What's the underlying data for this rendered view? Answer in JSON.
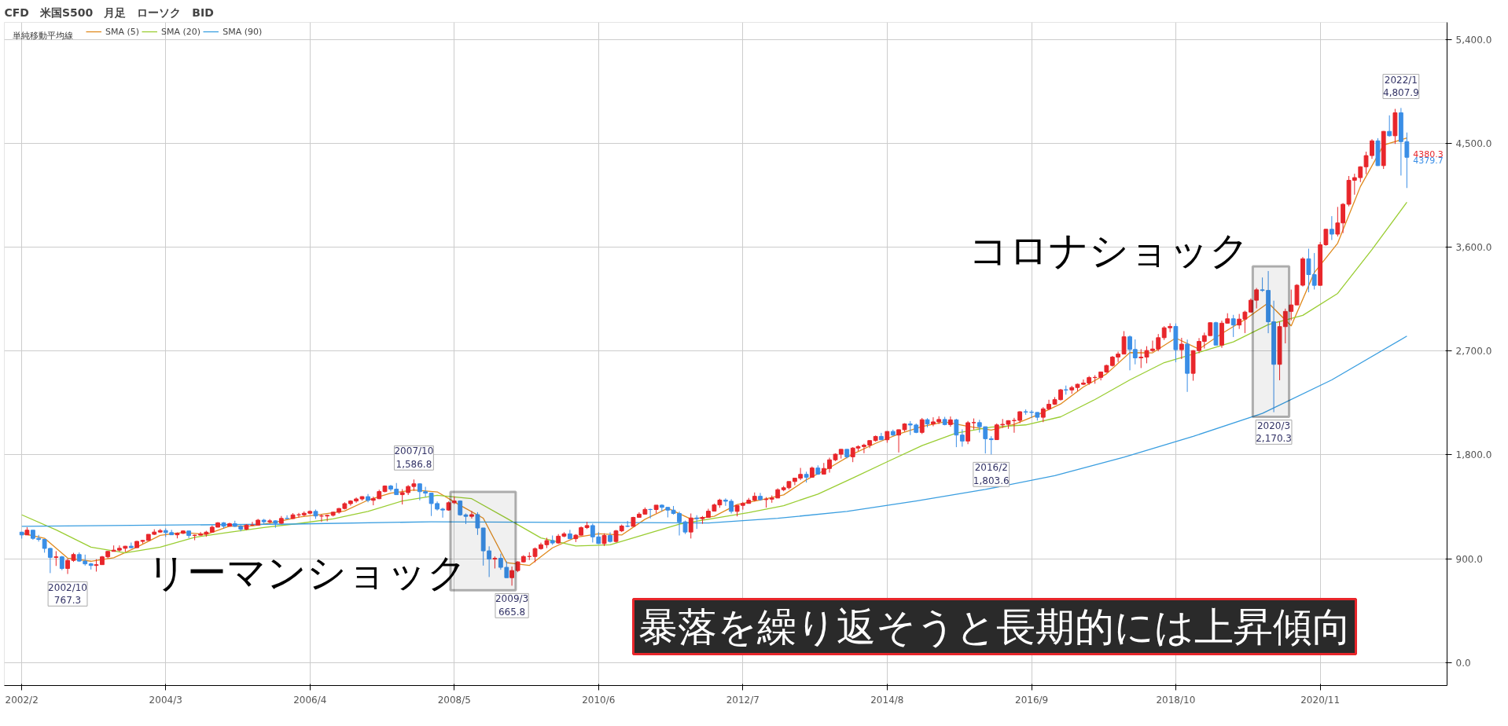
{
  "chart_data": {
    "type": "candlestick",
    "title": "CFD　米国S500　月足　ローソク　BID",
    "legend_title": "単純移動平均線",
    "legend": "top left",
    "grid": true,
    "xlim": [
      "2001-11",
      "2022-09"
    ],
    "xticks": [
      {
        "value": "2002-02",
        "label": "2002/2"
      },
      {
        "value": "2004-03",
        "label": "2004/3"
      },
      {
        "value": "2006-04",
        "label": "2006/4"
      },
      {
        "value": "2008-05",
        "label": "2008/5"
      },
      {
        "value": "2010-06",
        "label": "2010/6"
      },
      {
        "value": "2012-07",
        "label": "2012/7"
      },
      {
        "value": "2014-08",
        "label": "2014/8"
      },
      {
        "value": "2016-09",
        "label": "2016/9"
      },
      {
        "value": "2018-10",
        "label": "2018/10"
      },
      {
        "value": "2020-11",
        "label": "2020/11"
      }
    ],
    "ylim": [
      -200,
      5550
    ],
    "yticks": [
      {
        "value": 0,
        "label": "0.0"
      },
      {
        "value": 900,
        "label": "900.0"
      },
      {
        "value": 1800,
        "label": "1,800.0"
      },
      {
        "value": 2700,
        "label": "2,700.0"
      },
      {
        "value": 3600,
        "label": "3,600.0"
      },
      {
        "value": 4500,
        "label": "4,500.0"
      },
      {
        "value": 5400,
        "label": "5,400.0"
      }
    ],
    "x": [
      "2002-02",
      "2002-03",
      "2002-04",
      "2002-05",
      "2002-06",
      "2002-07",
      "2002-08",
      "2002-09",
      "2002-10",
      "2002-11",
      "2002-12",
      "2003-01",
      "2003-02",
      "2003-03",
      "2003-04",
      "2003-05",
      "2003-06",
      "2003-07",
      "2003-08",
      "2003-09",
      "2003-10",
      "2003-11",
      "2003-12",
      "2004-01",
      "2004-02",
      "2004-03",
      "2004-04",
      "2004-05",
      "2004-06",
      "2004-07",
      "2004-08",
      "2004-09",
      "2004-10",
      "2004-11",
      "2004-12",
      "2005-01",
      "2005-02",
      "2005-03",
      "2005-04",
      "2005-05",
      "2005-06",
      "2005-07",
      "2005-08",
      "2005-09",
      "2005-10",
      "2005-11",
      "2005-12",
      "2006-01",
      "2006-02",
      "2006-03",
      "2006-04",
      "2006-05",
      "2006-06",
      "2006-07",
      "2006-08",
      "2006-09",
      "2006-10",
      "2006-11",
      "2006-12",
      "2007-01",
      "2007-02",
      "2007-03",
      "2007-04",
      "2007-05",
      "2007-06",
      "2007-07",
      "2007-08",
      "2007-09",
      "2007-10",
      "2007-11",
      "2007-12",
      "2008-01",
      "2008-02",
      "2008-03",
      "2008-04",
      "2008-05",
      "2008-06",
      "2008-07",
      "2008-08",
      "2008-09",
      "2008-10",
      "2008-11",
      "2008-12",
      "2009-01",
      "2009-02",
      "2009-03",
      "2009-04",
      "2009-05",
      "2009-06",
      "2009-07",
      "2009-08",
      "2009-09",
      "2009-10",
      "2009-11",
      "2009-12",
      "2010-01",
      "2010-02",
      "2010-03",
      "2010-04",
      "2010-05",
      "2010-06",
      "2010-07",
      "2010-08",
      "2010-09",
      "2010-10",
      "2010-11",
      "2010-12",
      "2011-01",
      "2011-02",
      "2011-03",
      "2011-04",
      "2011-05",
      "2011-06",
      "2011-07",
      "2011-08",
      "2011-09",
      "2011-10",
      "2011-11",
      "2011-12",
      "2012-01",
      "2012-02",
      "2012-03",
      "2012-04",
      "2012-05",
      "2012-06",
      "2012-07",
      "2012-08",
      "2012-09",
      "2012-10",
      "2012-11",
      "2012-12",
      "2013-01",
      "2013-02",
      "2013-03",
      "2013-04",
      "2013-05",
      "2013-06",
      "2013-07",
      "2013-08",
      "2013-09",
      "2013-10",
      "2013-11",
      "2013-12",
      "2014-01",
      "2014-02",
      "2014-03",
      "2014-04",
      "2014-05",
      "2014-06",
      "2014-07",
      "2014-08",
      "2014-09",
      "2014-10",
      "2014-11",
      "2014-12",
      "2015-01",
      "2015-02",
      "2015-03",
      "2015-04",
      "2015-05",
      "2015-06",
      "2015-07",
      "2015-08",
      "2015-09",
      "2015-10",
      "2015-11",
      "2015-12",
      "2016-01",
      "2016-02",
      "2016-03",
      "2016-04",
      "2016-05",
      "2016-06",
      "2016-07",
      "2016-08",
      "2016-09",
      "2016-10",
      "2016-11",
      "2016-12",
      "2017-01",
      "2017-02",
      "2017-03",
      "2017-04",
      "2017-05",
      "2017-06",
      "2017-07",
      "2017-08",
      "2017-09",
      "2017-10",
      "2017-11",
      "2017-12",
      "2018-01",
      "2018-02",
      "2018-03",
      "2018-04",
      "2018-05",
      "2018-06",
      "2018-07",
      "2018-08",
      "2018-09",
      "2018-10",
      "2018-11",
      "2018-12",
      "2019-01",
      "2019-02",
      "2019-03",
      "2019-04",
      "2019-05",
      "2019-06",
      "2019-07",
      "2019-08",
      "2019-09",
      "2019-10",
      "2019-11",
      "2019-12",
      "2020-01",
      "2020-02",
      "2020-03",
      "2020-04",
      "2020-05",
      "2020-06",
      "2020-07",
      "2020-08",
      "2020-09",
      "2020-10",
      "2020-11",
      "2020-12",
      "2021-01",
      "2021-02",
      "2021-03",
      "2021-04",
      "2021-05",
      "2021-06",
      "2021-07",
      "2021-08",
      "2021-09",
      "2021-10",
      "2021-11",
      "2021-12",
      "2022-01",
      "2022-02"
    ],
    "ohlc": [
      [
        1130,
        1133,
        1074,
        1106
      ],
      [
        1106,
        1173,
        1106,
        1147
      ],
      [
        1147,
        1147,
        1063,
        1076
      ],
      [
        1076,
        1106,
        1048,
        1067
      ],
      [
        1067,
        1070,
        952,
        989
      ],
      [
        989,
        994,
        775,
        911
      ],
      [
        911,
        965,
        837,
        916
      ],
      [
        916,
        924,
        800,
        815
      ],
      [
        815,
        900,
        767.3,
        885
      ],
      [
        885,
        951,
        872,
        936
      ],
      [
        936,
        954,
        872,
        879
      ],
      [
        879,
        935,
        840,
        855
      ],
      [
        855,
        864,
        806,
        841
      ],
      [
        841,
        895,
        788,
        848
      ],
      [
        848,
        924,
        847,
        916
      ],
      [
        916,
        966,
        902,
        963
      ],
      [
        963,
        1015,
        963,
        974
      ],
      [
        974,
        1015,
        962,
        990
      ],
      [
        990,
        1011,
        960,
        1008
      ],
      [
        1008,
        1040,
        988,
        995
      ],
      [
        995,
        1054,
        995,
        1050
      ],
      [
        1050,
        1063,
        1031,
        1058
      ],
      [
        1058,
        1112,
        1058,
        1111
      ],
      [
        1111,
        1155,
        1105,
        1131
      ],
      [
        1131,
        1158,
        1124,
        1144
      ],
      [
        1144,
        1163,
        1088,
        1126
      ],
      [
        1126,
        1150,
        1107,
        1107
      ],
      [
        1107,
        1128,
        1076,
        1120
      ],
      [
        1120,
        1146,
        1114,
        1140
      ],
      [
        1140,
        1140,
        1078,
        1101
      ],
      [
        1101,
        1109,
        1060,
        1104
      ],
      [
        1104,
        1131,
        1101,
        1114
      ],
      [
        1114,
        1142,
        1090,
        1130
      ],
      [
        1130,
        1188,
        1127,
        1173
      ],
      [
        1173,
        1217,
        1173,
        1211
      ],
      [
        1211,
        1217,
        1163,
        1181
      ],
      [
        1181,
        1212,
        1180,
        1203
      ],
      [
        1203,
        1229,
        1176,
        1180
      ],
      [
        1180,
        1192,
        1137,
        1156
      ],
      [
        1156,
        1199,
        1146,
        1191
      ],
      [
        1191,
        1219,
        1188,
        1191
      ],
      [
        1191,
        1245,
        1190,
        1234
      ],
      [
        1234,
        1245,
        1201,
        1220
      ],
      [
        1220,
        1243,
        1205,
        1228
      ],
      [
        1228,
        1233,
        1168,
        1207
      ],
      [
        1207,
        1270,
        1202,
        1249
      ],
      [
        1249,
        1276,
        1246,
        1248
      ],
      [
        1248,
        1295,
        1245,
        1280
      ],
      [
        1280,
        1297,
        1254,
        1280
      ],
      [
        1280,
        1310,
        1268,
        1294
      ],
      [
        1294,
        1318,
        1285,
        1310
      ],
      [
        1310,
        1326,
        1245,
        1270
      ],
      [
        1270,
        1284,
        1219,
        1270
      ],
      [
        1270,
        1282,
        1224,
        1276
      ],
      [
        1276,
        1307,
        1266,
        1303
      ],
      [
        1303,
        1340,
        1290,
        1335
      ],
      [
        1335,
        1389,
        1327,
        1377
      ],
      [
        1377,
        1407,
        1360,
        1400
      ],
      [
        1400,
        1431,
        1385,
        1418
      ],
      [
        1418,
        1441,
        1403,
        1438
      ],
      [
        1438,
        1461,
        1389,
        1406
      ],
      [
        1406,
        1438,
        1363,
        1420
      ],
      [
        1420,
        1498,
        1416,
        1482
      ],
      [
        1482,
        1535,
        1476,
        1530
      ],
      [
        1530,
        1540,
        1484,
        1503
      ],
      [
        1503,
        1556,
        1454,
        1455
      ],
      [
        1455,
        1503,
        1370,
        1473
      ],
      [
        1473,
        1538,
        1452,
        1526
      ],
      [
        1526,
        1586.8,
        1489,
        1549
      ],
      [
        1549,
        1553,
        1406,
        1481
      ],
      [
        1481,
        1523,
        1435,
        1468
      ],
      [
        1468,
        1471,
        1270,
        1378
      ],
      [
        1378,
        1396,
        1317,
        1330
      ],
      [
        1330,
        1341,
        1256,
        1322
      ],
      [
        1322,
        1396,
        1315,
        1385
      ],
      [
        1385,
        1440,
        1373,
        1400
      ],
      [
        1400,
        1405,
        1272,
        1280
      ],
      [
        1280,
        1292,
        1200,
        1267
      ],
      [
        1267,
        1313,
        1248,
        1282
      ],
      [
        1282,
        1303,
        1106,
        1166
      ],
      [
        1166,
        1167,
        840,
        968
      ],
      [
        968,
        1007,
        741,
        896
      ],
      [
        896,
        919,
        815,
        903
      ],
      [
        903,
        943,
        804,
        825
      ],
      [
        825,
        876,
        735,
        735
      ],
      [
        735,
        832,
        665.8,
        797
      ],
      [
        797,
        877,
        783,
        872
      ],
      [
        872,
        930,
        866,
        919
      ],
      [
        919,
        956,
        888,
        919
      ],
      [
        919,
        997,
        869,
        987
      ],
      [
        987,
        1039,
        978,
        1021
      ],
      [
        1021,
        1081,
        992,
        1057
      ],
      [
        1057,
        1101,
        1020,
        1036
      ],
      [
        1036,
        1113,
        1029,
        1095
      ],
      [
        1095,
        1130,
        1086,
        1115
      ],
      [
        1115,
        1150,
        1071,
        1073
      ],
      [
        1073,
        1113,
        1044,
        1104
      ],
      [
        1104,
        1180,
        1101,
        1169
      ],
      [
        1169,
        1220,
        1157,
        1187
      ],
      [
        1187,
        1204,
        1040,
        1089
      ],
      [
        1089,
        1131,
        1028,
        1031
      ],
      [
        1031,
        1120,
        1010,
        1101
      ],
      [
        1101,
        1129,
        1040,
        1049
      ],
      [
        1049,
        1149,
        1040,
        1141
      ],
      [
        1141,
        1196,
        1131,
        1183
      ],
      [
        1183,
        1227,
        1173,
        1180
      ],
      [
        1180,
        1263,
        1180,
        1258
      ],
      [
        1258,
        1303,
        1256,
        1286
      ],
      [
        1286,
        1344,
        1284,
        1327
      ],
      [
        1327,
        1333,
        1249,
        1326
      ],
      [
        1326,
        1364,
        1294,
        1364
      ],
      [
        1364,
        1371,
        1311,
        1345
      ],
      [
        1345,
        1346,
        1258,
        1321
      ],
      [
        1321,
        1357,
        1282,
        1292
      ],
      [
        1292,
        1308,
        1101,
        1219
      ],
      [
        1219,
        1230,
        1114,
        1131
      ],
      [
        1131,
        1292,
        1075,
        1253
      ],
      [
        1253,
        1277,
        1158,
        1247
      ],
      [
        1247,
        1270,
        1202,
        1258
      ],
      [
        1258,
        1333,
        1258,
        1312
      ],
      [
        1312,
        1378,
        1312,
        1366
      ],
      [
        1366,
        1420,
        1341,
        1408
      ],
      [
        1408,
        1423,
        1358,
        1398
      ],
      [
        1398,
        1416,
        1292,
        1310
      ],
      [
        1310,
        1364,
        1267,
        1362
      ],
      [
        1362,
        1392,
        1325,
        1379
      ],
      [
        1379,
        1427,
        1378,
        1407
      ],
      [
        1407,
        1474,
        1397,
        1441
      ],
      [
        1441,
        1470,
        1403,
        1412
      ],
      [
        1412,
        1434,
        1343,
        1416
      ],
      [
        1416,
        1448,
        1385,
        1426
      ],
      [
        1426,
        1510,
        1426,
        1498
      ],
      [
        1498,
        1531,
        1485,
        1515
      ],
      [
        1515,
        1570,
        1501,
        1569
      ],
      [
        1569,
        1599,
        1537,
        1598
      ],
      [
        1598,
        1687,
        1581,
        1631
      ],
      [
        1631,
        1654,
        1560,
        1606
      ],
      [
        1606,
        1699,
        1605,
        1686
      ],
      [
        1686,
        1709,
        1627,
        1633
      ],
      [
        1633,
        1730,
        1633,
        1682
      ],
      [
        1682,
        1776,
        1646,
        1757
      ],
      [
        1757,
        1813,
        1746,
        1806
      ],
      [
        1806,
        1849,
        1768,
        1848
      ],
      [
        1848,
        1850,
        1770,
        1783
      ],
      [
        1783,
        1867,
        1737,
        1859
      ],
      [
        1859,
        1883,
        1834,
        1872
      ],
      [
        1872,
        1897,
        1814,
        1884
      ],
      [
        1884,
        1925,
        1859,
        1924
      ],
      [
        1924,
        1968,
        1915,
        1960
      ],
      [
        1960,
        1991,
        1930,
        1931
      ],
      [
        1931,
        2005,
        1905,
        2003
      ],
      [
        2003,
        2019,
        1964,
        1972
      ],
      [
        1972,
        2019,
        1821,
        2018
      ],
      [
        2018,
        2075,
        2001,
        2068
      ],
      [
        2068,
        2093,
        1972,
        2059
      ],
      [
        2059,
        2072,
        1988,
        1995
      ],
      [
        1995,
        2120,
        1981,
        2105
      ],
      [
        2105,
        2118,
        2039,
        2068
      ],
      [
        2068,
        2126,
        2048,
        2086
      ],
      [
        2086,
        2135,
        2067,
        2107
      ],
      [
        2107,
        2130,
        2056,
        2063
      ],
      [
        2063,
        2133,
        2044,
        2104
      ],
      [
        2104,
        2113,
        1867,
        1972
      ],
      [
        1972,
        2021,
        1871,
        1920
      ],
      [
        1920,
        2094,
        1893,
        2079
      ],
      [
        2079,
        2116,
        2019,
        2080
      ],
      [
        2080,
        2104,
        1993,
        2044
      ],
      [
        2044,
        2045,
        1812,
        1940
      ],
      [
        1940,
        1962,
        1803.6,
        1932
      ],
      [
        1932,
        2073,
        1931,
        2060
      ],
      [
        2060,
        2111,
        2034,
        2065
      ],
      [
        2065,
        2100,
        2026,
        2097
      ],
      [
        2097,
        2121,
        1992,
        2099
      ],
      [
        2099,
        2178,
        2075,
        2174
      ],
      [
        2174,
        2194,
        2148,
        2171
      ],
      [
        2171,
        2188,
        2120,
        2168
      ],
      [
        2168,
        2170,
        2097,
        2126
      ],
      [
        2126,
        2214,
        2084,
        2199
      ],
      [
        2199,
        2278,
        2187,
        2239
      ],
      [
        2239,
        2301,
        2233,
        2279
      ],
      [
        2279,
        2372,
        2271,
        2364
      ],
      [
        2364,
        2401,
        2322,
        2363
      ],
      [
        2363,
        2399,
        2329,
        2384
      ],
      [
        2384,
        2418,
        2353,
        2412
      ],
      [
        2412,
        2454,
        2405,
        2423
      ],
      [
        2423,
        2484,
        2407,
        2470
      ],
      [
        2470,
        2491,
        2417,
        2472
      ],
      [
        2472,
        2520,
        2446,
        2519
      ],
      [
        2519,
        2582,
        2511,
        2575
      ],
      [
        2575,
        2658,
        2566,
        2648
      ],
      [
        2648,
        2695,
        2605,
        2674
      ],
      [
        2674,
        2873,
        2673,
        2824
      ],
      [
        2824,
        2836,
        2533,
        2714
      ],
      [
        2714,
        2801,
        2585,
        2641
      ],
      [
        2641,
        2717,
        2553,
        2648
      ],
      [
        2648,
        2742,
        2594,
        2705
      ],
      [
        2705,
        2791,
        2692,
        2718
      ],
      [
        2718,
        2848,
        2698,
        2816
      ],
      [
        2816,
        2916,
        2796,
        2902
      ],
      [
        2902,
        2941,
        2864,
        2914
      ],
      [
        2914,
        2940,
        2603,
        2712
      ],
      [
        2712,
        2815,
        2631,
        2760
      ],
      [
        2760,
        2800,
        2346,
        2507
      ],
      [
        2507,
        2708,
        2443,
        2704
      ],
      [
        2704,
        2813,
        2681,
        2784
      ],
      [
        2784,
        2860,
        2722,
        2834
      ],
      [
        2834,
        2949,
        2832,
        2946
      ],
      [
        2946,
        2954,
        2750,
        2752
      ],
      [
        2752,
        2964,
        2728,
        2942
      ],
      [
        2942,
        3028,
        2940,
        2980
      ],
      [
        2980,
        3014,
        2822,
        2926
      ],
      [
        2926,
        3022,
        2892,
        2977
      ],
      [
        2977,
        3050,
        2856,
        3038
      ],
      [
        3038,
        3156,
        3036,
        3141
      ],
      [
        3141,
        3247,
        3070,
        3231
      ],
      [
        3231,
        3338,
        3214,
        3226
      ],
      [
        3226,
        3394,
        2855,
        2954
      ],
      [
        2954,
        3137,
        2170.3,
        2585
      ],
      [
        2585,
        2955,
        2447,
        2912
      ],
      [
        2912,
        3068,
        2767,
        3044
      ],
      [
        3044,
        3233,
        2966,
        3100
      ],
      [
        3100,
        3280,
        3099,
        3271
      ],
      [
        3271,
        3515,
        3260,
        3500
      ],
      [
        3500,
        3588,
        3210,
        3363
      ],
      [
        3363,
        3550,
        3234,
        3270
      ],
      [
        3270,
        3646,
        3268,
        3622
      ],
      [
        3622,
        3760,
        3613,
        3756
      ],
      [
        3756,
        3870,
        3663,
        3714
      ],
      [
        3714,
        3950,
        3694,
        3811
      ],
      [
        3811,
        3983,
        3723,
        3973
      ],
      [
        3973,
        4218,
        3955,
        4181
      ],
      [
        4181,
        4238,
        4056,
        4204
      ],
      [
        4204,
        4302,
        4165,
        4298
      ],
      [
        4298,
        4429,
        4234,
        4395
      ],
      [
        4395,
        4537,
        4367,
        4523
      ],
      [
        4523,
        4546,
        4305,
        4308
      ],
      [
        4308,
        4608,
        4279,
        4605
      ],
      [
        4605,
        4744,
        4560,
        4567
      ],
      [
        4567,
        4800,
        4496,
        4766
      ],
      [
        4766,
        4807.9,
        4222,
        4516
      ],
      [
        4516,
        4595,
        4114,
        4380.3
      ]
    ],
    "series": [
      {
        "name": "SMA (5)",
        "type": "line",
        "color": "#e08a1e",
        "x": [
          "2002-02",
          "2002-06",
          "2002-10",
          "2003-02",
          "2003-06",
          "2003-10",
          "2004-02",
          "2004-06",
          "2004-10",
          "2005-02",
          "2005-06",
          "2005-10",
          "2006-02",
          "2006-06",
          "2006-10",
          "2007-02",
          "2007-06",
          "2007-10",
          "2008-02",
          "2008-06",
          "2008-10",
          "2009-02",
          "2009-06",
          "2009-10",
          "2010-02",
          "2010-06",
          "2010-10",
          "2011-02",
          "2011-06",
          "2011-10",
          "2012-02",
          "2012-06",
          "2012-10",
          "2013-02",
          "2013-06",
          "2013-10",
          "2014-02",
          "2014-06",
          "2014-10",
          "2015-02",
          "2015-06",
          "2015-10",
          "2016-02",
          "2016-06",
          "2016-10",
          "2017-02",
          "2017-06",
          "2017-10",
          "2018-02",
          "2018-06",
          "2018-10",
          "2019-02",
          "2019-06",
          "2019-10",
          "2020-02",
          "2020-06",
          "2020-10",
          "2021-02",
          "2021-06",
          "2021-10",
          "2022-02"
        ],
        "values": [
          1120,
          1077,
          905,
          878,
          908,
          1000,
          1102,
          1127,
          1110,
          1182,
          1184,
          1216,
          1261,
          1285,
          1313,
          1408,
          1468,
          1495,
          1479,
          1363,
          1251,
          865,
          841,
          994,
          1085,
          1116,
          1105,
          1242,
          1337,
          1244,
          1267,
          1369,
          1409,
          1453,
          1584,
          1689,
          1807,
          1900,
          1981,
          2046,
          2086,
          2048,
          2015,
          2065,
          2146,
          2241,
          2389,
          2502,
          2687,
          2685,
          2813,
          2717,
          2852,
          2973,
          3118,
          2919,
          3381,
          3635,
          4127,
          4486,
          4547
        ]
      },
      {
        "name": "SMA (20)",
        "type": "line",
        "color": "#9acd32",
        "x": [
          "2002-02",
          "2002-08",
          "2003-02",
          "2003-08",
          "2004-02",
          "2004-08",
          "2005-02",
          "2005-08",
          "2006-02",
          "2006-08",
          "2007-02",
          "2007-08",
          "2008-02",
          "2008-08",
          "2009-02",
          "2009-08",
          "2010-02",
          "2010-08",
          "2011-02",
          "2011-08",
          "2012-02",
          "2012-08",
          "2013-02",
          "2013-08",
          "2014-02",
          "2014-08",
          "2015-02",
          "2015-08",
          "2016-02",
          "2016-08",
          "2017-02",
          "2017-08",
          "2018-02",
          "2018-08",
          "2019-02",
          "2019-08",
          "2020-02",
          "2020-08",
          "2021-02",
          "2021-08",
          "2022-02"
        ],
        "values": [
          1280,
          1150,
          1000,
          950,
          1000,
          1085,
          1130,
          1170,
          1205,
          1245,
          1310,
          1400,
          1450,
          1420,
          1250,
          1080,
          1010,
          1020,
          1110,
          1200,
          1250,
          1300,
          1360,
          1460,
          1600,
          1740,
          1880,
          1990,
          2040,
          2060,
          2130,
          2280,
          2450,
          2600,
          2690,
          2780,
          2930,
          3010,
          3200,
          3580,
          3990
        ]
      },
      {
        "name": "SMA (90)",
        "type": "line",
        "color": "#3a9ee0",
        "x": [
          "2002-02",
          "2004-01",
          "2006-01",
          "2008-01",
          "2010-01",
          "2012-01",
          "2013-01",
          "2014-01",
          "2015-01",
          "2016-01",
          "2017-01",
          "2018-01",
          "2019-01",
          "2020-01",
          "2021-01",
          "2022-02"
        ],
        "values": [
          1180,
          1190,
          1200,
          1220,
          1215,
          1210,
          1250,
          1310,
          1400,
          1500,
          1620,
          1780,
          1960,
          2160,
          2450,
          2830
        ]
      }
    ],
    "bands": [
      {
        "axis": "x",
        "from": "2008-05",
        "to": "2009-03",
        "color": "#000000"
      },
      {
        "axis": "x",
        "from": "2019-12",
        "to": "2020-05",
        "color": "#000000"
      }
    ],
    "annotations": [
      {
        "text": "2002/10\n767.3",
        "x": "2002-10",
        "y": 767.3
      },
      {
        "text": "2007/10\n1,586.8",
        "x": "2007-10",
        "y": 1586.8
      },
      {
        "text": "2009/3\n665.8",
        "x": "2009-03",
        "y": 665.8
      },
      {
        "text": "2016/2\n1,803.6",
        "x": "2016-02",
        "y": 1803.6
      },
      {
        "text": "2020/3\n2,170.3",
        "x": "2020-03",
        "y": 2170.3
      },
      {
        "text": "2022/1\n4,807.9",
        "x": "2022-01",
        "y": 4807.9
      },
      {
        "text": "4380.3",
        "x": "2022-02",
        "y": 4380.3
      },
      {
        "text": "4379.7",
        "x": "2022-02",
        "y": 4379.7
      },
      "リーマンショック",
      "コロナショック",
      "暴落を繰り返そうと長期的には上昇傾向"
    ]
  }
}
